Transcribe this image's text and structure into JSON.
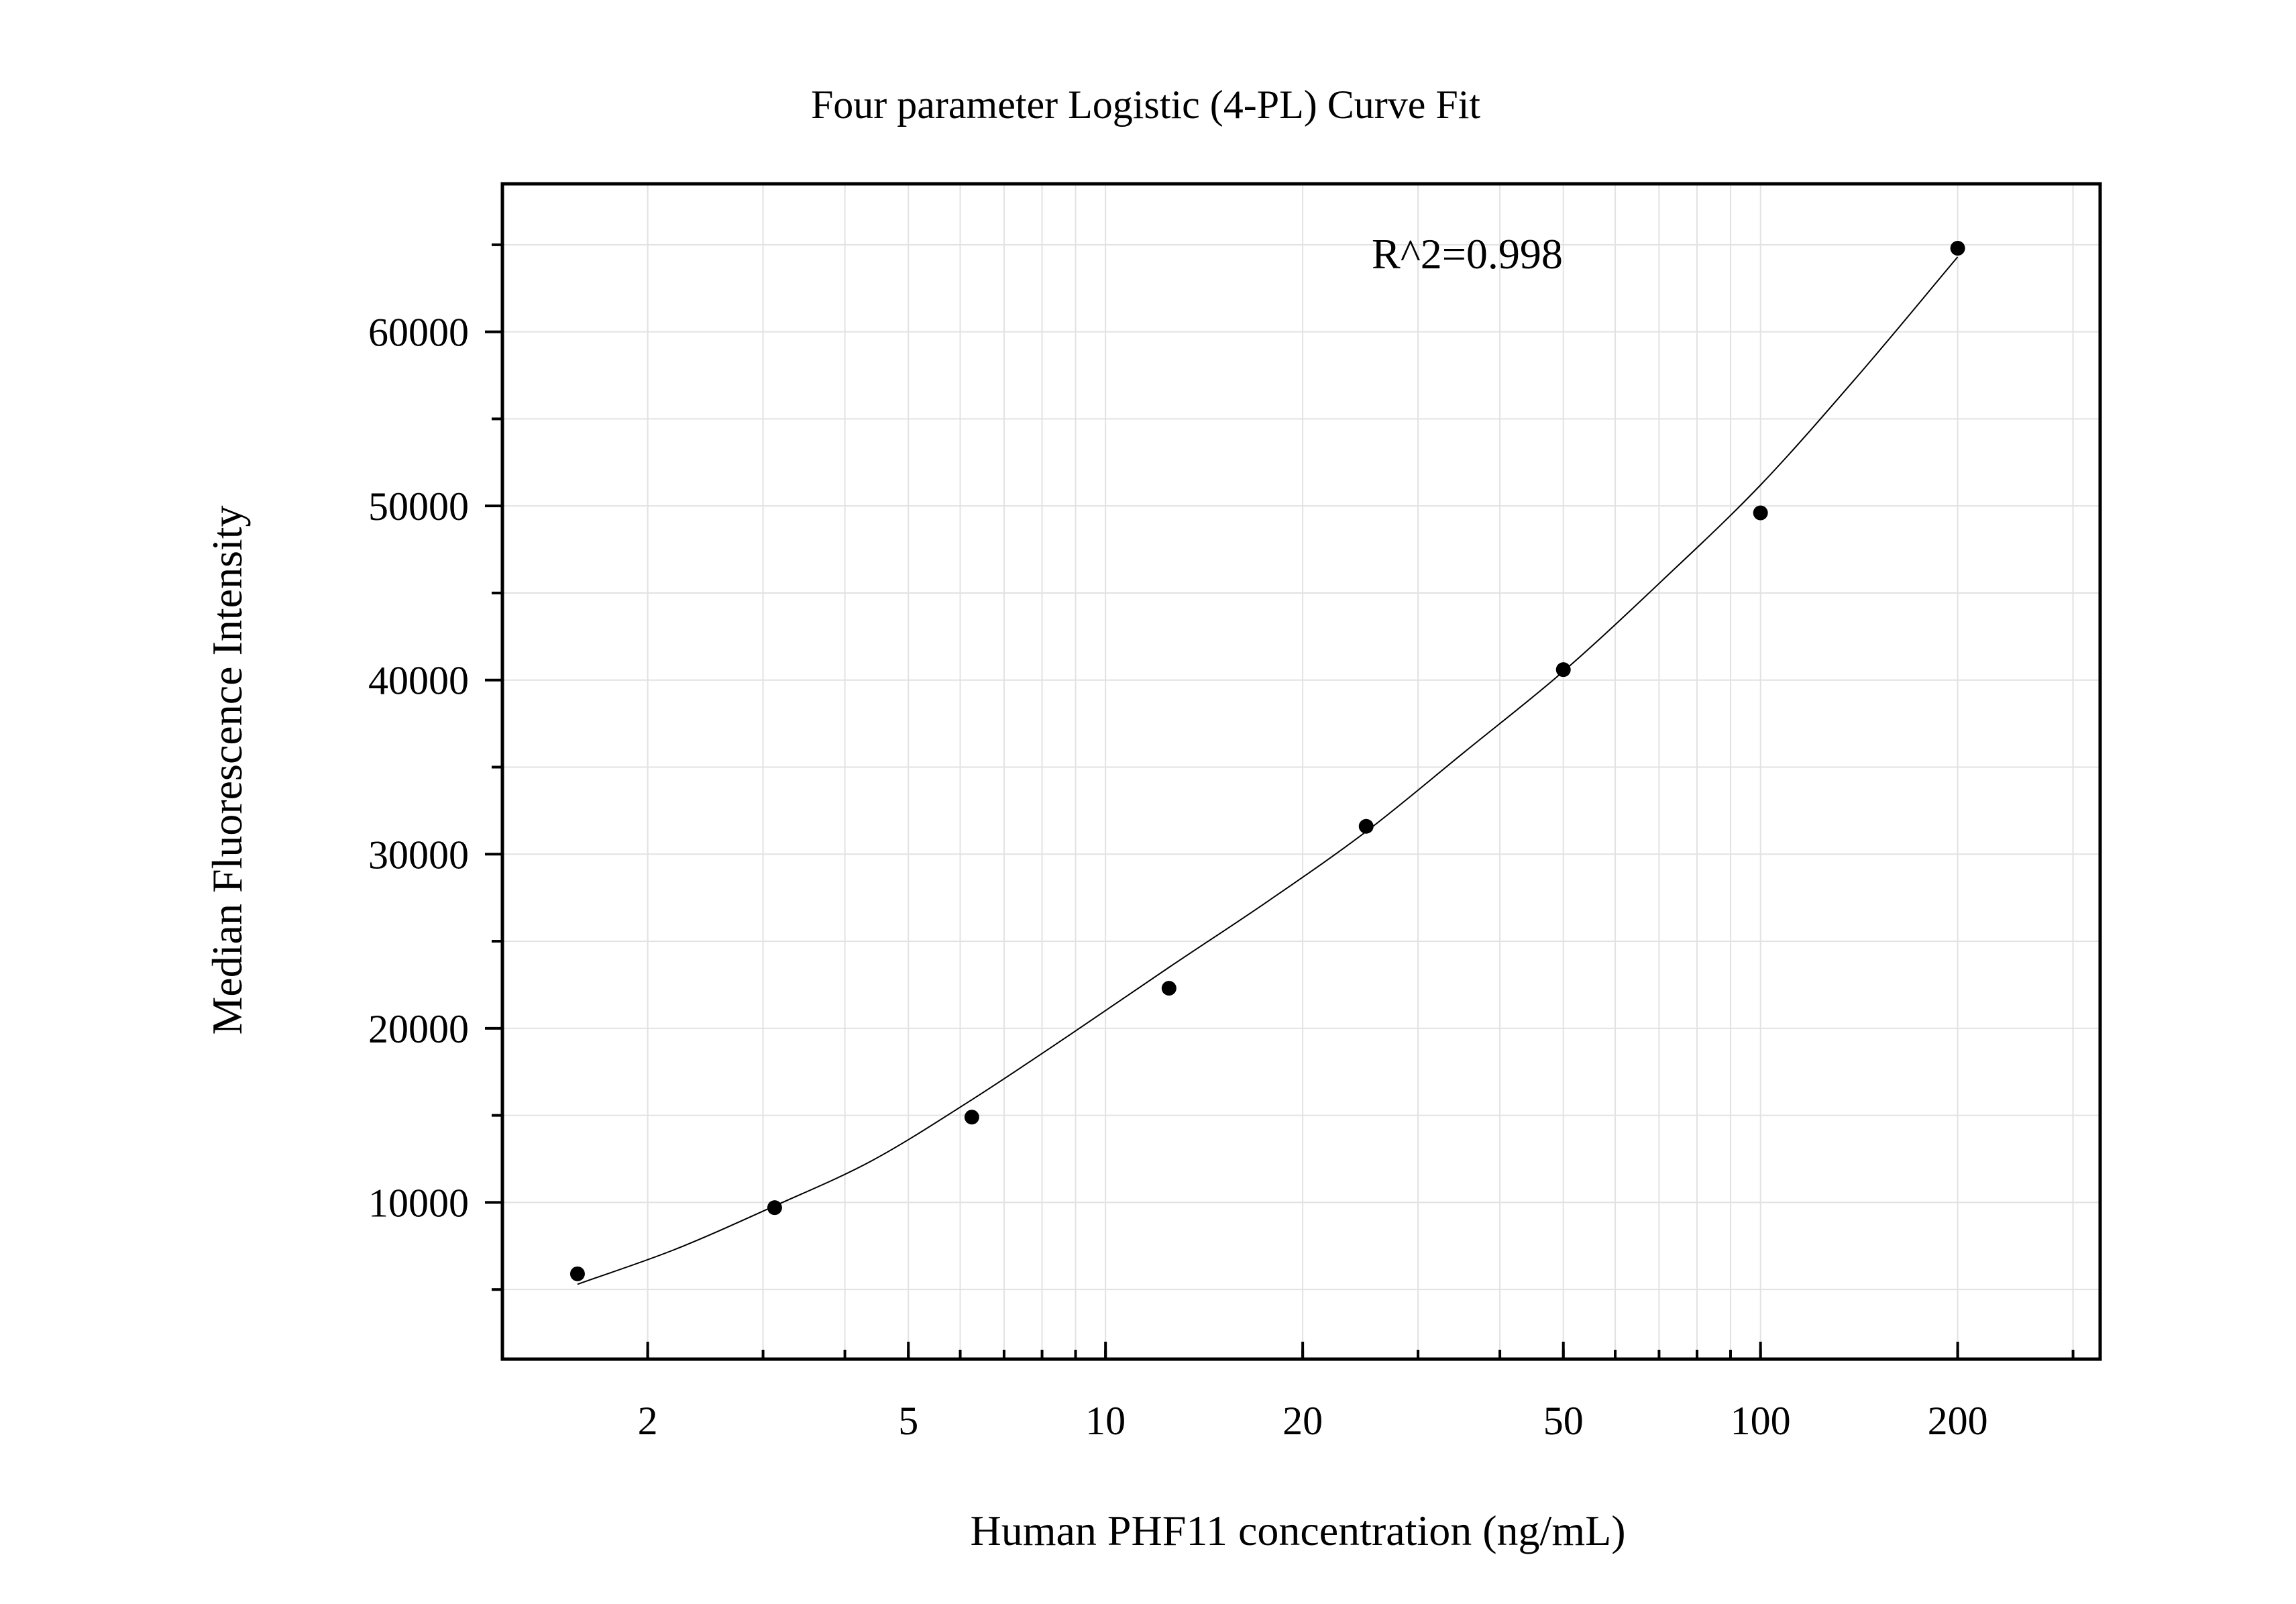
{
  "chart_data": {
    "type": "scatter",
    "title": "Four parameter Logistic (4-PL) Curve Fit",
    "xlabel": "Human PHF11 concentration (ng/mL)",
    "ylabel": "Median Fluorescence Intensity",
    "x_scale": "log",
    "xlim": [
      1.2,
      330
    ],
    "ylim": [
      1000,
      68500
    ],
    "x_ticks": [
      2,
      5,
      10,
      20,
      50,
      100,
      200
    ],
    "x_tick_labels": [
      "2",
      "5",
      "10",
      "20",
      "50",
      "100",
      "200"
    ],
    "y_ticks": [
      10000,
      20000,
      30000,
      40000,
      50000,
      60000
    ],
    "y_tick_labels": [
      "10000",
      "20000",
      "30000",
      "40000",
      "50000",
      "60000"
    ],
    "y_minor_ticks": [
      5000,
      15000,
      25000,
      35000,
      45000,
      55000,
      65000
    ],
    "grid": true,
    "annotation": "R^2=0.998",
    "series": [
      {
        "kind": "points",
        "x": [
          1.5625,
          3.125,
          6.25,
          12.5,
          25,
          50,
          100,
          200
        ],
        "y": [
          5900,
          9700,
          14900,
          22300,
          31600,
          40600,
          49600,
          64800
        ]
      },
      {
        "kind": "fit_curve",
        "model": "4PL",
        "x_range": [
          1.5625,
          200
        ],
        "x": [
          1.5625,
          2.2,
          3.125,
          4.4,
          6.25,
          8.8,
          12.5,
          17.7,
          25,
          35.4,
          50,
          70.7,
          100,
          141,
          200
        ],
        "y": [
          5300,
          7300,
          9800,
          12400,
          15900,
          19600,
          23500,
          27300,
          31300,
          35900,
          40500,
          45700,
          51200,
          57500,
          64300
        ]
      }
    ],
    "colors": {
      "points": "#000000",
      "curve": "#000000",
      "frame": "#000000",
      "grid": "#e2e2e2"
    }
  }
}
